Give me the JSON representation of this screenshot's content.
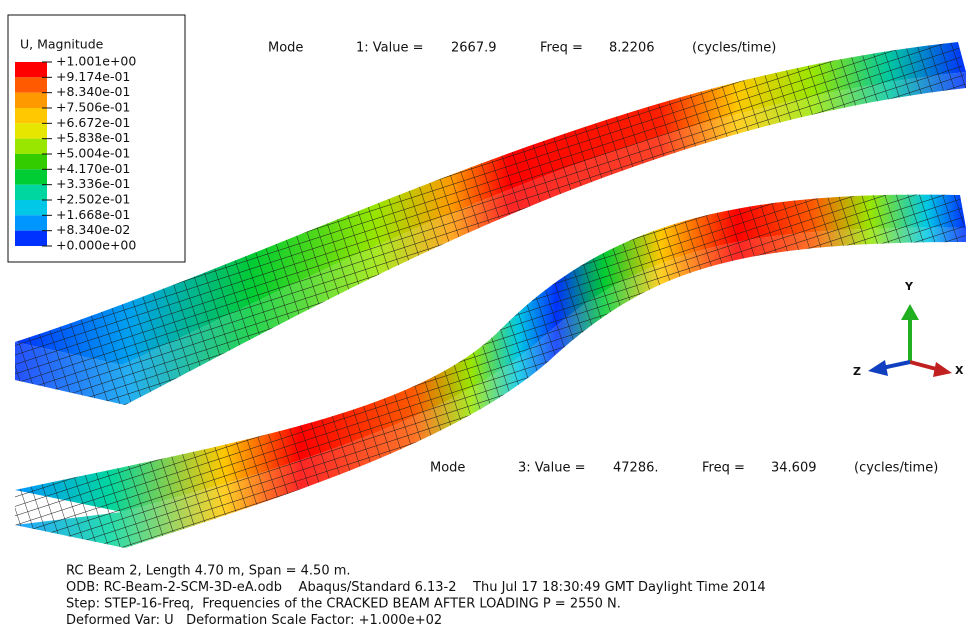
{
  "legend": {
    "title": "U, Magnitude",
    "labels": [
      "+1.001e+00",
      "+9.174e-01",
      "+8.340e-01",
      "+7.506e-01",
      "+6.672e-01",
      "+5.838e-01",
      "+5.004e-01",
      "+4.170e-01",
      "+3.336e-01",
      "+2.502e-01",
      "+1.668e-01",
      "+8.340e-02",
      "+0.000e+00"
    ],
    "colors": [
      "#ff0000",
      "#ff5a00",
      "#ff9900",
      "#ffc800",
      "#e6e600",
      "#99e600",
      "#33cc00",
      "#00cc33",
      "#00d6a0",
      "#00c8e6",
      "#0096ff",
      "#0032ff"
    ]
  },
  "modes": [
    {
      "label": "Mode",
      "value_text": "1: Value =",
      "value": "2667.9",
      "freq_text": "Freq =",
      "freq": "8.2206",
      "unit": "(cycles/time)"
    },
    {
      "label": "Mode",
      "value_text": "3: Value =",
      "value": "47286.",
      "freq_text": "Freq =",
      "freq": "34.609",
      "unit": "(cycles/time)"
    }
  ],
  "triad": {
    "y": "Y",
    "x": "X",
    "z": "Z"
  },
  "footer": [
    "RC Beam 2, Length 4.70 m, Span = 4.50 m.",
    "ODB: RC-Beam-2-SCM-3D-eA.odb    Abaqus/Standard 6.13-2    Thu Jul 17 18:30:49 GMT Daylight Time 2014",
    "Step: STEP-16-Freq,  Frequencies of the CRACKED BEAM AFTER LOADING P = 2550 N.",
    "Deformed Var: U   Deformation Scale Factor: +1.000e+02"
  ]
}
